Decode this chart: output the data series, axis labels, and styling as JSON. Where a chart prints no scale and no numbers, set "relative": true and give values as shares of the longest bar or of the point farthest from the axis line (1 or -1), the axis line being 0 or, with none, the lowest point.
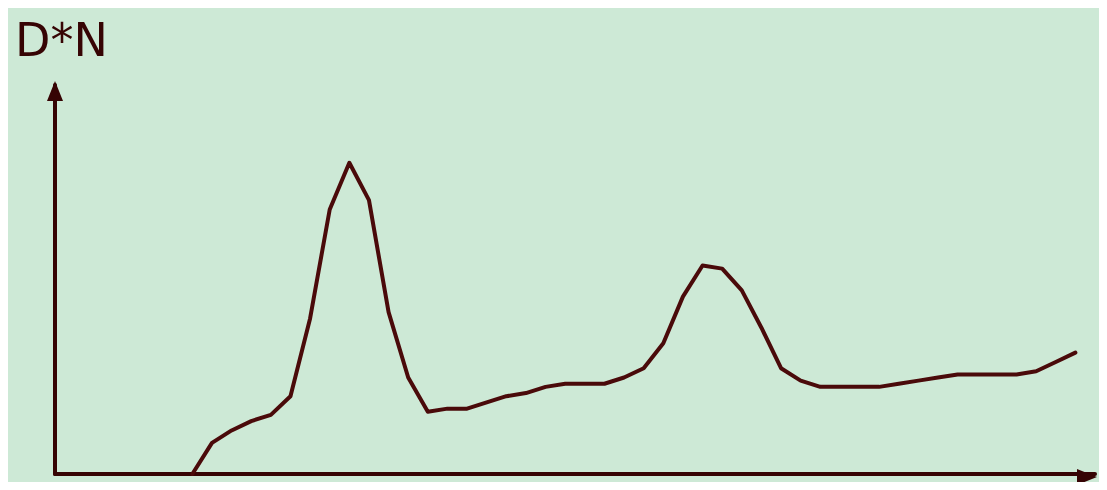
{
  "chart_data": {
    "type": "line",
    "ylabel": "D*N",
    "relative": true,
    "grid": false,
    "marker": "none",
    "line_style": "solid",
    "categories": [
      null,
      null,
      null,
      null,
      null,
      null,
      null,
      null,
      null,
      null,
      null,
      null,
      null,
      null,
      null,
      null,
      null,
      null,
      null,
      null,
      null,
      null,
      null,
      null,
      null,
      null,
      null,
      null,
      null,
      null,
      null,
      null,
      null,
      null,
      null,
      null,
      null,
      null,
      null,
      null,
      null,
      null,
      null,
      null,
      null,
      null,
      null,
      null,
      null,
      null,
      null,
      null,
      null,
      null
    ],
    "series": [
      {
        "color": "#4a0a0a",
        "values": [
          null,
          null,
          null,
          null,
          null,
          null,
          null,
          0,
          0.1,
          0.14,
          0.17,
          0.19,
          0.25,
          0.5,
          0.85,
          1,
          0.88,
          0.52,
          0.31,
          0.2,
          0.21,
          0.21,
          0.23,
          0.25,
          0.26,
          0.28,
          0.29,
          0.29,
          0.29,
          0.31,
          0.34,
          0.42,
          0.57,
          0.67,
          0.66,
          0.59,
          0.47,
          0.34,
          0.3,
          0.28,
          0.28,
          0.28,
          0.28,
          0.29,
          0.3,
          0.31,
          0.32,
          0.32,
          0.32,
          0.32,
          0.33,
          0.36,
          0.39,
          null
        ]
      }
    ]
  }
}
